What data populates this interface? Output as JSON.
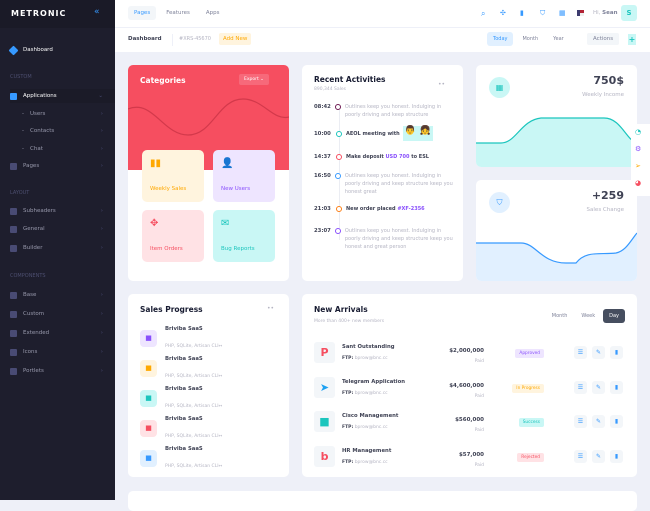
{
  "sidebar": {
    "brand": "METRONIC",
    "dashboard": "Dashboard",
    "sections": [
      "CUSTOM",
      "LAYOUT",
      "COMPONENTS"
    ],
    "custom": [
      {
        "label": "Applications"
      },
      {
        "label": "Users"
      },
      {
        "label": "Contacts"
      },
      {
        "label": "Chat"
      },
      {
        "label": "Pages"
      }
    ],
    "layout": [
      {
        "label": "Subheaders"
      },
      {
        "label": "General"
      },
      {
        "label": "Builder"
      }
    ],
    "components": [
      {
        "label": "Base"
      },
      {
        "label": "Custom"
      },
      {
        "label": "Extended"
      },
      {
        "label": "Icons"
      },
      {
        "label": "Portlets"
      }
    ]
  },
  "header": {
    "tabs": [
      "Pages",
      "Features",
      "Apps"
    ],
    "greeting": "Hi,",
    "user": "Sean",
    "avatar": "S"
  },
  "subheader": {
    "title": "Dashboard",
    "code": "#XRS-45670",
    "add_new": "Add New",
    "periods": [
      "Today",
      "Month",
      "Year"
    ],
    "actions": "Actions",
    "plus": "+"
  },
  "categories": {
    "title": "Categories",
    "export": "Export",
    "tiles": [
      "Weekly Sales",
      "New Users",
      "Item Orders",
      "Bug Reports"
    ]
  },
  "activities": {
    "title": "Recent Activities",
    "subtitle": "890,344 Sales",
    "items": [
      {
        "time": "08:42",
        "text": "Outlines keep you honest. Indulging in poorly driving and keep structure",
        "color": "#6e1a52"
      },
      {
        "time": "10:00",
        "text": "AEOL meeting with",
        "color": "#1bc5bd"
      },
      {
        "time": "14:37",
        "pre": "Make deposit ",
        "hl": "USD 700",
        "post": " to ESL",
        "color": "#f64e60"
      },
      {
        "time": "16:50",
        "text": "Outlines keep you honest. Indulging in poorly driving and keep structure keep you honest great",
        "color": "#3699ff"
      },
      {
        "time": "21:03",
        "pre": "New order placed ",
        "hl": "#XF-2356",
        "post": "",
        "color": "#fd7e14"
      },
      {
        "time": "23:07",
        "text": "Outlines keep you honest. Indulging in poorly driving and keep structure keep you honest and great person",
        "color": "#8950fc"
      }
    ]
  },
  "weekly": {
    "value": "750$",
    "label": "Weekly Income"
  },
  "sales_change": {
    "value": "+259",
    "label": "Sales Change"
  },
  "sales_progress": {
    "title": "Sales Progress",
    "items": [
      {
        "name": "Briviba SaaS",
        "desc": "PHP, SQLite, Artisan CLI↔",
        "bg": "#eee5ff",
        "fg": "#8950fc"
      },
      {
        "name": "Briviba SaaS",
        "desc": "PHP, SQLite, Artisan CLI↔",
        "bg": "#fff4de",
        "fg": "#ffa800"
      },
      {
        "name": "Briviba SaaS",
        "desc": "PHP, SQLite, Artisan CLI↔",
        "bg": "#c9f7f5",
        "fg": "#1bc5bd"
      },
      {
        "name": "Briviba SaaS",
        "desc": "PHP, SQLite, Artisan CLI↔",
        "bg": "#ffe2e5",
        "fg": "#f64e60"
      },
      {
        "name": "Briviba SaaS",
        "desc": "PHP, SQLite, Artisan CLI↔",
        "bg": "#e1f0ff",
        "fg": "#3699ff"
      }
    ]
  },
  "new_arrivals": {
    "title": "New Arrivals",
    "subtitle": "More than 400+ new members",
    "filters": [
      "Month",
      "Week",
      "Day"
    ],
    "rows": [
      {
        "name": "Sant Outstanding",
        "ftp_label": "FTP:",
        "ftp": "bprow@bnc.cc",
        "price": "$2,000,000",
        "paid": "Paid",
        "status": "Approved",
        "sbg": "#eee5ff",
        "sfg": "#8950fc",
        "logo": "P",
        "lc": "#f64e60"
      },
      {
        "name": "Telegram Application",
        "ftp_label": "FTP:",
        "ftp": "bprow@bnc.cc",
        "price": "$4,600,000",
        "paid": "Paid",
        "status": "In Progress",
        "sbg": "#fff4de",
        "sfg": "#ffa800",
        "logo": "➤",
        "lc": "#1da1f2"
      },
      {
        "name": "Cisco Management",
        "ftp_label": "FTP:",
        "ftp": "bprow@bnc.cc",
        "price": "$560,000",
        "paid": "Paid",
        "status": "Success",
        "sbg": "#c9f7f5",
        "sfg": "#1bc5bd",
        "logo": "■",
        "lc": "#1bc5bd"
      },
      {
        "name": "HR Management",
        "ftp_label": "FTP:",
        "ftp": "bprow@bnc.cc",
        "price": "$57,000",
        "paid": "Paid",
        "status": "Rejected",
        "sbg": "#ffe2e5",
        "sfg": "#f64e60",
        "logo": "b",
        "lc": "#f64e60"
      }
    ]
  }
}
